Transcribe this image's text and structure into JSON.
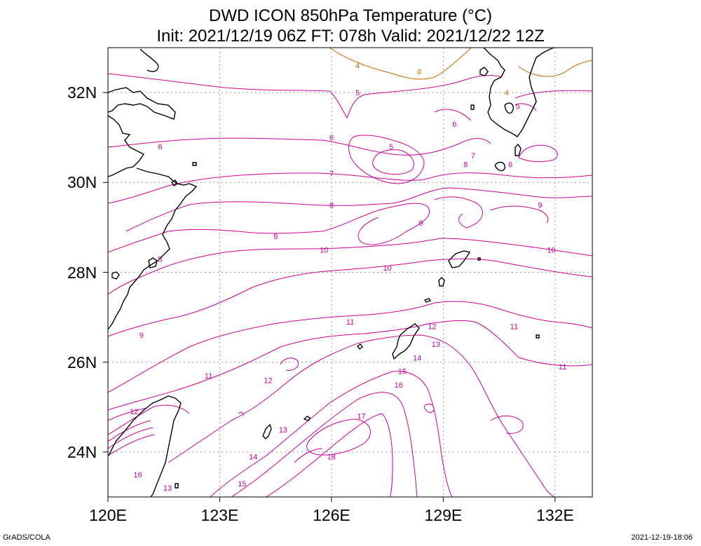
{
  "title": {
    "line1": "DWD ICON 850hPa Temperature (°C)",
    "line2": "Init: 2021/12/19 06Z  FT: 078h  Valid: 2021/12/22 12Z"
  },
  "axes": {
    "x_ticks": [
      "120E",
      "123E",
      "126E",
      "129E",
      "132E"
    ],
    "y_ticks": [
      "32N",
      "30N",
      "28N",
      "26N",
      "24N"
    ],
    "lon_range": [
      120,
      133
    ],
    "lat_range": [
      23,
      33
    ]
  },
  "footer": {
    "left": "GrADS/COLA",
    "right": "2021-12-19-18:06"
  },
  "colors": {
    "warm_contour": "#cc0099",
    "cool_contour": "#cc6600",
    "coast": "#000000",
    "grid": "#999999"
  },
  "contour_labels": [
    "4",
    "5",
    "6",
    "7",
    "8",
    "9",
    "10",
    "11",
    "12",
    "13",
    "14",
    "15",
    "16",
    "17",
    "18"
  ],
  "chart_data": {
    "type": "heatmap",
    "title": "DWD ICON 850hPa Temperature (°C)",
    "xlim": [
      120,
      133
    ],
    "ylim": [
      23,
      33
    ],
    "contour_interval": 1,
    "contour_levels": [
      4,
      5,
      6,
      7,
      8,
      9,
      10,
      11,
      12,
      13,
      14,
      15,
      16,
      17,
      18
    ],
    "labels": [
      {
        "value": 4,
        "lon": 126.7,
        "lat": 32.6
      },
      {
        "value": 4,
        "lon": 130.7,
        "lat": 32.0
      },
      {
        "value": 5,
        "lon": 126.7,
        "lat": 32.0
      },
      {
        "value": 5,
        "lon": 127.6,
        "lat": 30.8
      },
      {
        "value": 5,
        "lon": 131.0,
        "lat": 31.7
      },
      {
        "value": 6,
        "lon": 121.4,
        "lat": 30.8
      },
      {
        "value": 6,
        "lon": 126.0,
        "lat": 31.0
      },
      {
        "value": 6,
        "lon": 129.3,
        "lat": 31.3
      },
      {
        "value": 6,
        "lon": 130.8,
        "lat": 30.4
      },
      {
        "value": 7,
        "lon": 126.0,
        "lat": 30.2
      },
      {
        "value": 7,
        "lon": 129.8,
        "lat": 30.6
      },
      {
        "value": 8,
        "lon": 126.0,
        "lat": 29.5
      },
      {
        "value": 8,
        "lon": 121.4,
        "lat": 28.3
      },
      {
        "value": 8,
        "lon": 129.6,
        "lat": 30.4
      },
      {
        "value": 9,
        "lon": 124.5,
        "lat": 28.8
      },
      {
        "value": 9,
        "lon": 128.4,
        "lat": 29.1
      },
      {
        "value": 9,
        "lon": 131.6,
        "lat": 29.5
      },
      {
        "value": 9,
        "lon": 120.9,
        "lat": 26.6
      },
      {
        "value": 10,
        "lon": 125.8,
        "lat": 28.5
      },
      {
        "value": 10,
        "lon": 127.5,
        "lat": 28.1
      },
      {
        "value": 10,
        "lon": 131.9,
        "lat": 28.5
      },
      {
        "value": 11,
        "lon": 126.5,
        "lat": 26.9
      },
      {
        "value": 11,
        "lon": 130.9,
        "lat": 26.8
      },
      {
        "value": 11,
        "lon": 122.7,
        "lat": 25.7
      },
      {
        "value": 11,
        "lon": 132.2,
        "lat": 25.9
      },
      {
        "value": 12,
        "lon": 124.3,
        "lat": 25.6
      },
      {
        "value": 12,
        "lon": 128.7,
        "lat": 26.8
      },
      {
        "value": 12,
        "lon": 120.7,
        "lat": 24.9
      },
      {
        "value": 13,
        "lon": 128.8,
        "lat": 26.4
      },
      {
        "value": 13,
        "lon": 124.7,
        "lat": 24.5
      },
      {
        "value": 13,
        "lon": 121.6,
        "lat": 23.2
      },
      {
        "value": 14,
        "lon": 128.3,
        "lat": 26.1
      },
      {
        "value": 14,
        "lon": 123.9,
        "lat": 23.9
      },
      {
        "value": 15,
        "lon": 127.9,
        "lat": 25.8
      },
      {
        "value": 15,
        "lon": 123.6,
        "lat": 23.3
      },
      {
        "value": 16,
        "lon": 127.8,
        "lat": 25.5
      },
      {
        "value": 16,
        "lon": 120.8,
        "lat": 23.5
      },
      {
        "value": 17,
        "lon": 126.8,
        "lat": 24.8
      },
      {
        "value": 18,
        "lon": 126.0,
        "lat": 23.9
      }
    ]
  }
}
